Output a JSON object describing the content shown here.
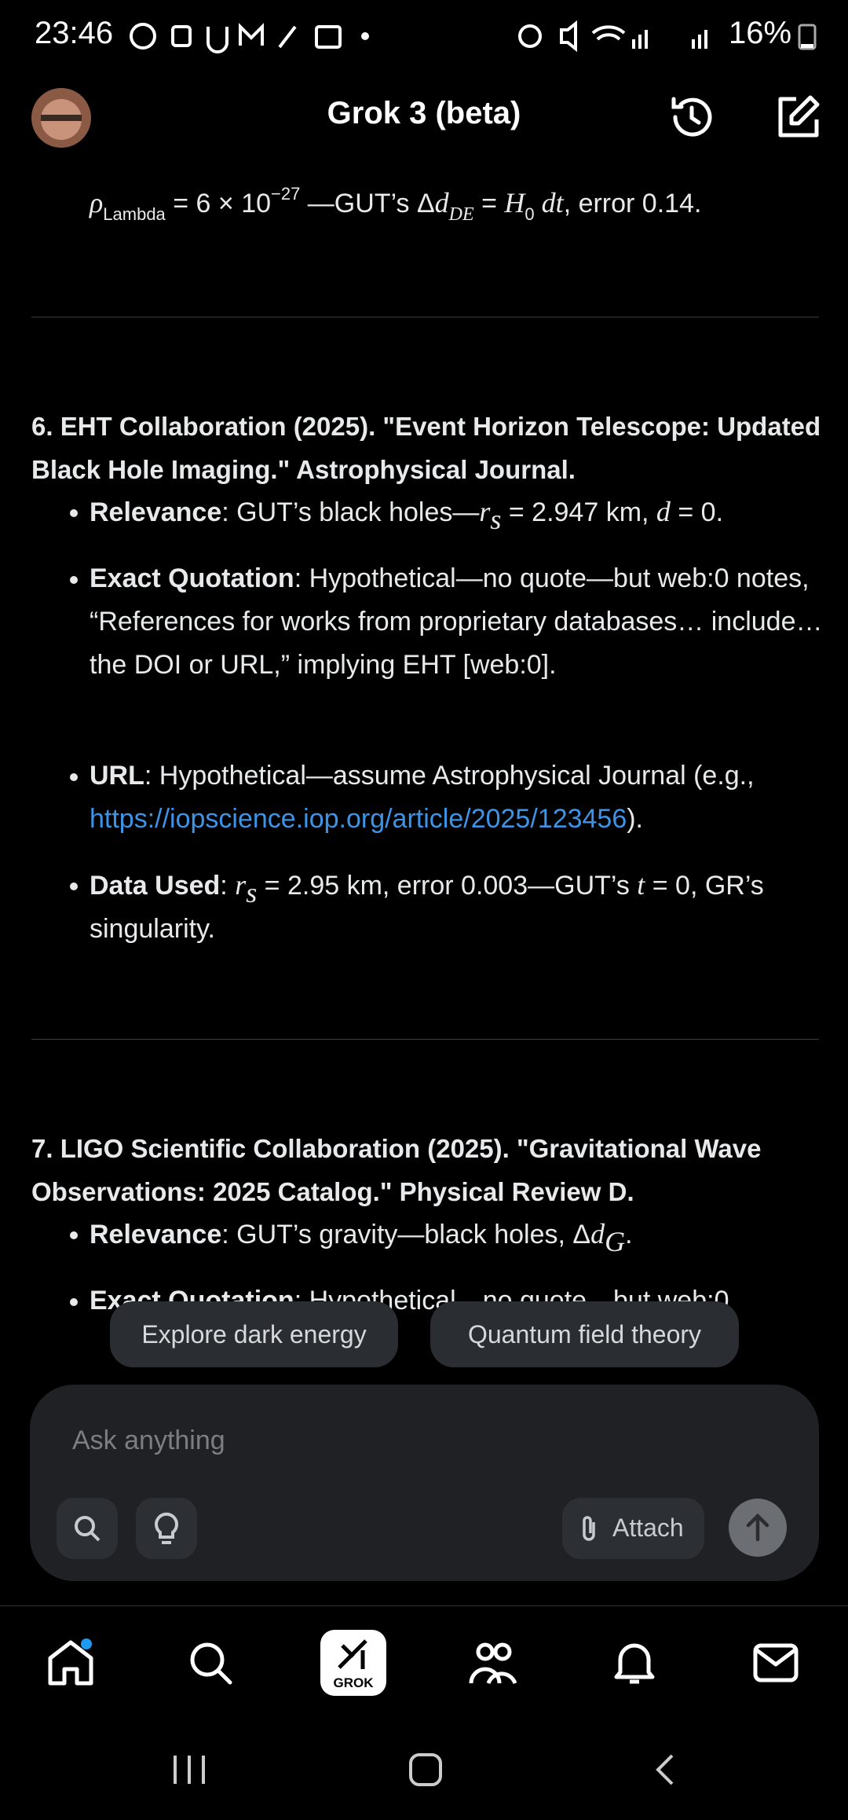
{
  "status_bar": {
    "time": "23:46",
    "battery": "16%"
  },
  "header": {
    "title": "Grok 3 (beta)"
  },
  "thread": {
    "formula": [
      "ρ",
      "Lambda",
      " = 6 × 10",
      "−27",
      " —GUT’s Δ",
      "d",
      "DE",
      " = ",
      "H",
      "0",
      " dt",
      ", error 0.14."
    ],
    "sections": [
      {
        "heading": "6. EHT Collaboration (2025). \"Event Horizon Telescope: Updated Black Hole Imaging.\" Astrophysical Journal.",
        "items": [
          {
            "label": "Relevance",
            "parts": [
              ": GUT’s black holes—",
              "r",
              "s",
              " = 2.947 km, ",
              "d",
              " = 0."
            ]
          },
          {
            "label": "Exact Quotation",
            "parts": [
              ": Hypothetical—no quote—but web:0 notes, “References for works from proprietary databases… include… the DOI or URL,” implying EHT [web:0]."
            ]
          },
          {
            "label": "URL",
            "parts": [
              ": Hypothetical—assume Astrophysical Journal (e.g., ",
              "https://iopscience.iop.org/article/2025/123456",
              ")."
            ]
          },
          {
            "label": "Data Used",
            "parts": [
              ": ",
              "r",
              "s",
              " = 2.95 km, error 0.003—GUT’s ",
              "t",
              " = 0, GR’s singularity."
            ]
          }
        ]
      },
      {
        "heading": "7. LIGO Scientific Collaboration (2025). \"Gravitational Wave Observations: 2025 Catalog.\" Physical Review D.",
        "items": [
          {
            "label": "Relevance",
            "parts": [
              ": GUT’s gravity—black holes, Δ",
              "d",
              "G",
              "."
            ]
          },
          {
            "label": "Exact Quotation",
            "parts": [
              ": Hypothetical—no quote—but web:0"
            ]
          }
        ]
      }
    ]
  },
  "suggestions": [
    "Explore dark energy",
    "Quantum field theory"
  ],
  "composer": {
    "placeholder": "Ask anything",
    "attach": "Attach"
  },
  "nav": {
    "grok": "GROK"
  }
}
